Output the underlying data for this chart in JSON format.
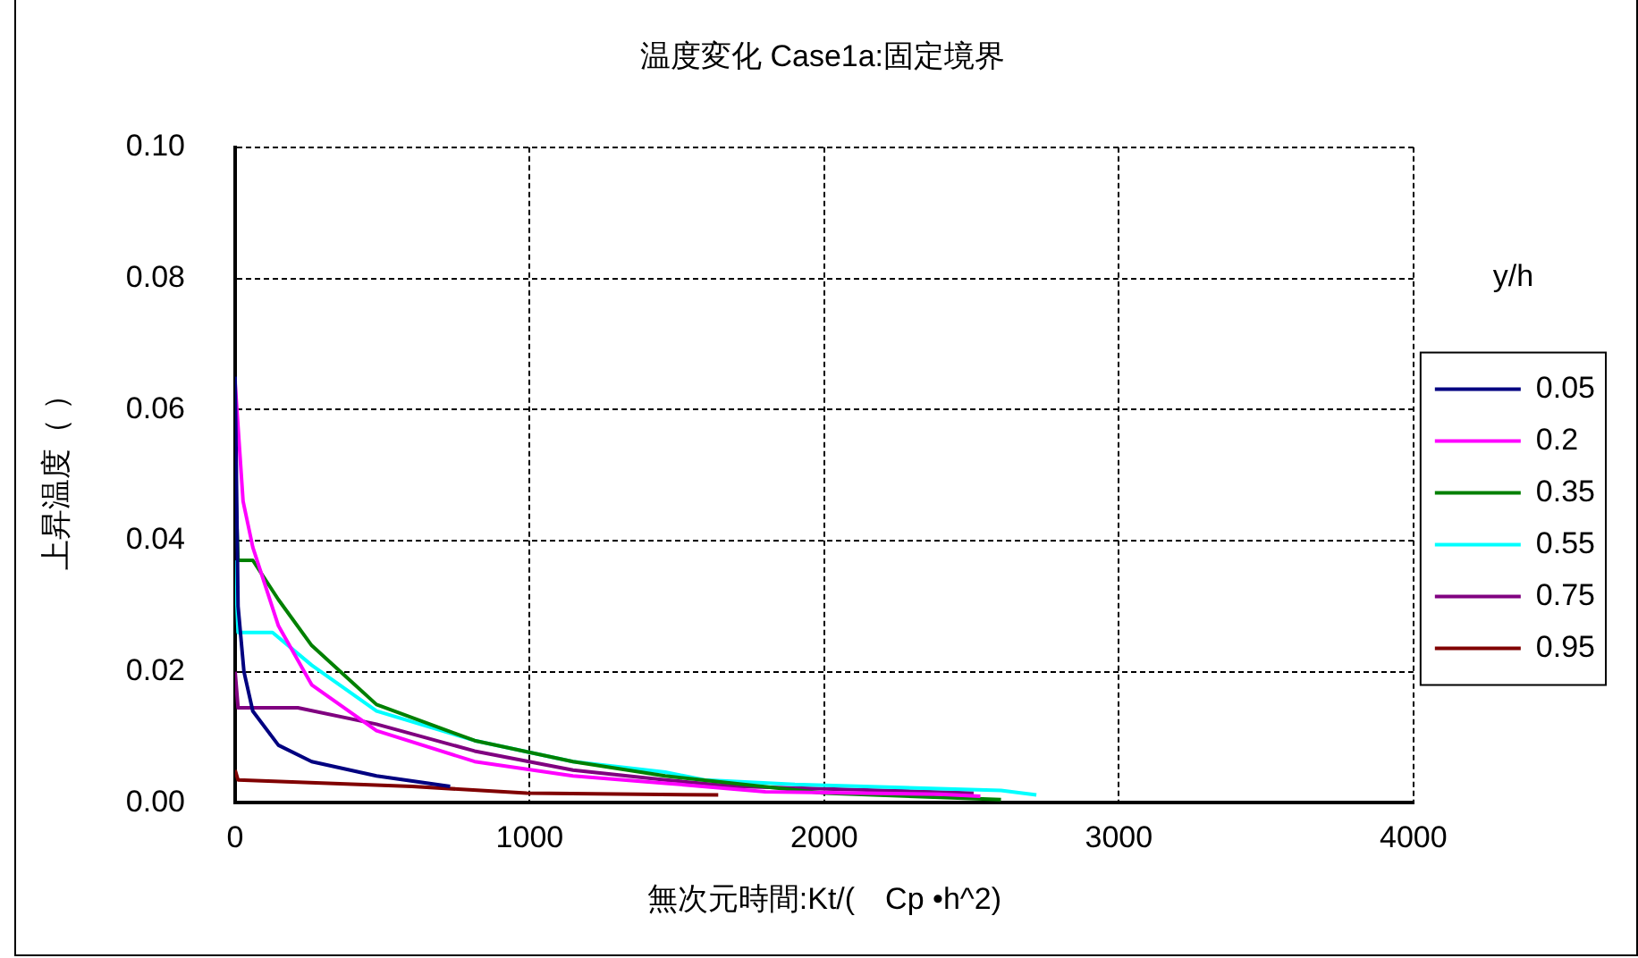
{
  "chart_data": {
    "type": "line",
    "title": "温度変化 Case1a:固定境界",
    "xlabel": "無次元時間:Kt/(　Cp •h^2)",
    "ylabel": "上昇温度（ ）",
    "legend_title": "y/h",
    "xlim": [
      0,
      4000
    ],
    "xticks": [
      0,
      1000,
      2000,
      3000,
      4000
    ],
    "ylim": [
      0,
      0.1
    ],
    "yticks": [
      {
        "value": 0,
        "label": "0.00"
      },
      {
        "value": 0.02,
        "label": "0.02"
      },
      {
        "value": 0.04,
        "label": "0.04"
      },
      {
        "value": 0.06,
        "label": "0.06"
      },
      {
        "value": 0.08,
        "label": "0.08"
      },
      {
        "value": 0.1,
        "label": "0.10"
      }
    ],
    "grid": true,
    "legend": "right",
    "marker": "none",
    "line_style": "solid",
    "series": [
      {
        "name": "0.05",
        "color": "#000080",
        "x": [
          0,
          10,
          30,
          60,
          147,
          260,
          480,
          730
        ],
        "values": [
          0.065,
          0.03,
          0.02,
          0.014,
          0.0088,
          0.0063,
          0.0041,
          0.0025
        ]
      },
      {
        "name": "0.2",
        "color": "#ff00ff",
        "x": [
          0,
          27,
          60,
          147,
          260,
          480,
          813,
          1147,
          1460,
          1800,
          2390,
          2530
        ],
        "values": [
          0.064,
          0.046,
          0.039,
          0.027,
          0.018,
          0.011,
          0.0063,
          0.0041,
          0.003,
          0.0017,
          0.0013,
          0.001
        ]
      },
      {
        "name": "0.35",
        "color": "#008000",
        "x": [
          0,
          10,
          60,
          147,
          260,
          480,
          813,
          1147,
          1460,
          2000,
          2600
        ],
        "values": [
          0.05,
          0.037,
          0.037,
          0.031,
          0.024,
          0.015,
          0.0095,
          0.0063,
          0.0041,
          0.0015,
          0.0005
        ]
      },
      {
        "name": "0.55",
        "color": "#00ffff",
        "x": [
          0,
          10,
          127,
          260,
          480,
          813,
          1147,
          1460,
          1593,
          1900,
          2600,
          2720
        ],
        "values": [
          0.037,
          0.026,
          0.026,
          0.021,
          0.014,
          0.0095,
          0.0063,
          0.0047,
          0.0035,
          0.0028,
          0.0019,
          0.0012
        ]
      },
      {
        "name": "0.75",
        "color": "#800080",
        "x": [
          0,
          10,
          213,
          480,
          813,
          1147,
          1460,
          1700,
          2200,
          2507
        ],
        "values": [
          0.02,
          0.0145,
          0.0145,
          0.012,
          0.0079,
          0.005,
          0.0035,
          0.0025,
          0.0019,
          0.0015
        ]
      },
      {
        "name": "0.95",
        "color": "#800000",
        "x": [
          0,
          10,
          600,
          990,
          1640
        ],
        "values": [
          0.005,
          0.0035,
          0.0025,
          0.0015,
          0.0012
        ]
      }
    ]
  }
}
